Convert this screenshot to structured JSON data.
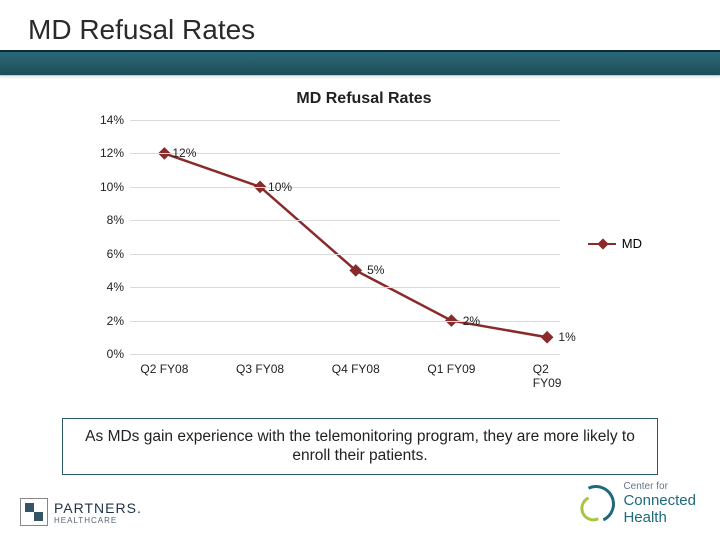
{
  "slide_title": "MD Refusal Rates",
  "header_band_gradient": [
    "#2b6a7a",
    "#1e4c58"
  ],
  "chart": {
    "type": "line",
    "title": "MD Refusal Rates",
    "title_fontsize": 16,
    "title_fontweight": 700,
    "background_color": "#ffffff",
    "grid_color": "#dadada",
    "line_color": "#8a2b2b",
    "line_width": 2.5,
    "marker_shape": "diamond",
    "marker_size": 9,
    "marker_color": "#8a2b2b",
    "ylim": [
      0,
      14
    ],
    "ytick_step": 2,
    "y_tick_suffix": "%",
    "x_categories": [
      "Q2 FY08",
      "Q3 FY08",
      "Q4 FY08",
      "Q1 FY09",
      "Q2 FY09"
    ],
    "series_name": "MD",
    "values": [
      12,
      10,
      5,
      2,
      1
    ],
    "point_labels": [
      "12%",
      "10%",
      "5%",
      "2%",
      "1%"
    ],
    "label_fontsize": 12,
    "y_ticks": [
      "0%",
      "2%",
      "4%",
      "6%",
      "8%",
      "10%",
      "12%",
      "14%"
    ]
  },
  "callout_text": "As MDs gain experience with the telemonitoring program, they are more likely to enroll their patients.",
  "logo_left": {
    "line1": "PARTNERS.",
    "line2": "HEALTHCARE"
  },
  "logo_right": {
    "small": "Center for",
    "line1": "Connected",
    "line2": "Health"
  }
}
